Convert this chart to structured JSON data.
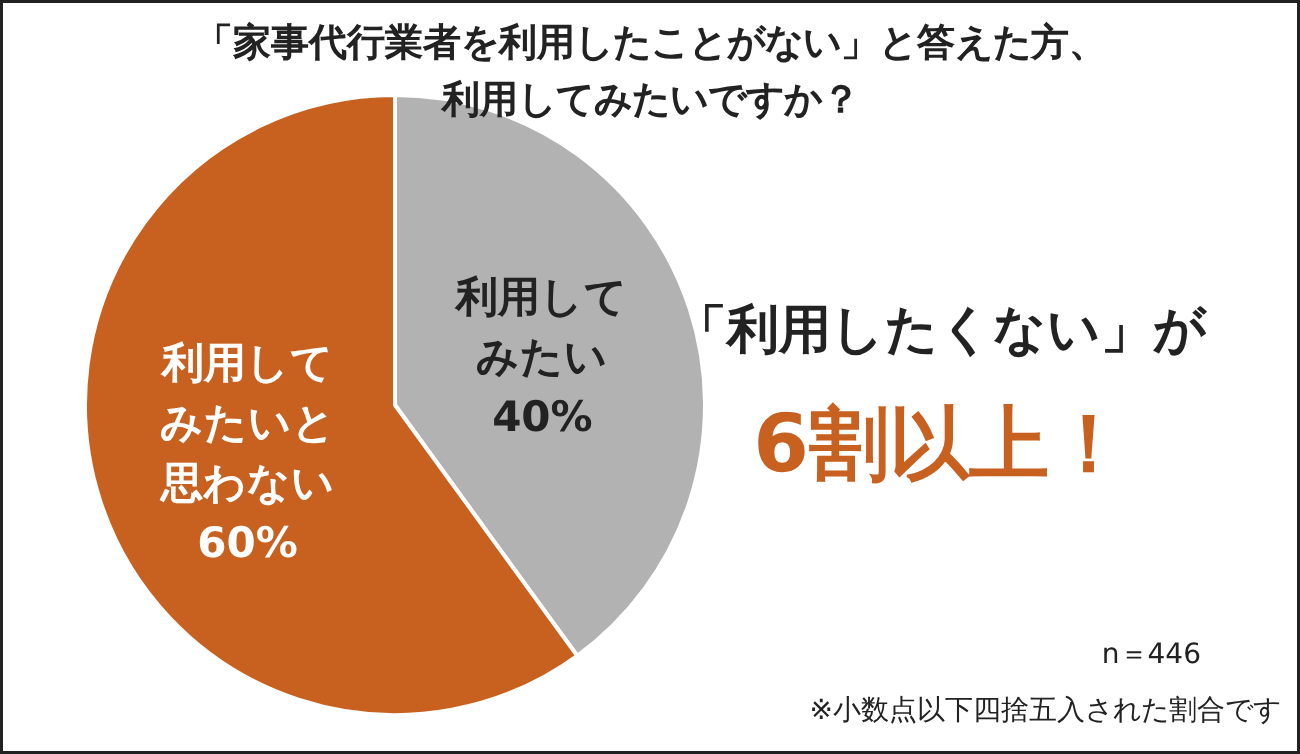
{
  "chart_data": {
    "type": "pie",
    "title": "「家事代行業者を利用したことがない」と答えた方、利用してみたいですか？",
    "categories": [
      "利用してみたい",
      "利用してみたいと思わない"
    ],
    "values": [
      40,
      60
    ],
    "value_labels": [
      "40%",
      "60%"
    ],
    "colors": [
      "#b2b2b2",
      "#c8601f"
    ],
    "annotations": [
      "「利用したくない」が",
      "6割以上！",
      "n＝446",
      "※小数点以下四捨五入された割合です"
    ]
  }
}
